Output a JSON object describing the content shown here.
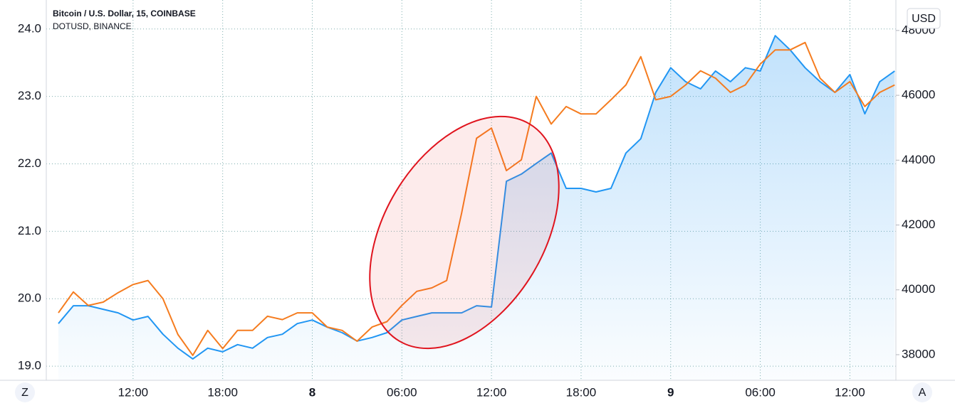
{
  "chart_data": {
    "type": "line",
    "title": "Bitcoin / U.S. Dollar, 15, COINBASE",
    "subtitle": "DOTUSD, BINANCE",
    "currency_label": "USD",
    "left_button": "Z",
    "right_button": "A",
    "categories": [
      null,
      null,
      null,
      null,
      null,
      "12:00",
      null,
      null,
      null,
      null,
      null,
      "18:00",
      null,
      null,
      null,
      null,
      null,
      "8",
      null,
      null,
      null,
      null,
      null,
      "06:00",
      null,
      null,
      null,
      null,
      null,
      "12:00",
      null,
      null,
      null,
      null,
      null,
      "18:00",
      null,
      null,
      null,
      null,
      null,
      "9",
      null,
      null,
      null,
      null,
      null,
      "06:00",
      null,
      null,
      null,
      null,
      null,
      "12:00",
      null,
      null,
      null
    ],
    "ylim": [
      18.79,
      24.43
    ],
    "yticks": [
      {
        "value": 19,
        "label": "19.0"
      },
      {
        "value": 20,
        "label": "20.0"
      },
      {
        "value": 21,
        "label": "21.0"
      },
      {
        "value": 22,
        "label": "22.0"
      },
      {
        "value": 23,
        "label": "23.0"
      },
      {
        "value": 24,
        "label": "24.0"
      }
    ],
    "y2lim": [
      37210,
      48940
    ],
    "y2ticks": [
      38000,
      40000,
      42000,
      44000,
      46000,
      48000
    ],
    "grid": true,
    "series": [
      {
        "name": "DOTUSD, BINANCE",
        "color": "#f57c1f",
        "axis": "y",
        "values": [
          19.79,
          20.1,
          19.9,
          19.95,
          20.09,
          20.21,
          20.27,
          20.0,
          19.47,
          19.16,
          19.53,
          19.26,
          19.53,
          19.53,
          19.74,
          19.69,
          19.79,
          19.79,
          19.58,
          19.53,
          19.37,
          19.58,
          19.66,
          19.9,
          20.11,
          20.16,
          20.27,
          21.27,
          22.38,
          22.53,
          21.9,
          22.06,
          23.0,
          22.59,
          22.85,
          22.74,
          22.74,
          22.95,
          23.17,
          23.59,
          22.95,
          23.0,
          23.17,
          23.38,
          23.27,
          23.06,
          23.17,
          23.48,
          23.69,
          23.69,
          23.8,
          23.27,
          23.06,
          23.22,
          22.85,
          23.06,
          23.17
        ]
      },
      {
        "name": "Bitcoin / U.S. Dollar, 15, COINBASE",
        "color": "#2196f3",
        "axis": "y2",
        "values": [
          38960,
          39510,
          39510,
          39400,
          39290,
          39070,
          39180,
          38630,
          38200,
          37870,
          38200,
          38090,
          38310,
          38200,
          38530,
          38630,
          38960,
          39070,
          38850,
          38680,
          38420,
          38530,
          38680,
          39070,
          39180,
          39290,
          39290,
          39290,
          39510,
          39470,
          43350,
          43570,
          43900,
          44220,
          43130,
          43130,
          43020,
          43130,
          44220,
          44660,
          46090,
          46850,
          46420,
          46200,
          46750,
          46420,
          46850,
          46750,
          47840,
          47400,
          46850,
          46420,
          46090,
          46640,
          45430,
          46420,
          46750
        ]
      }
    ]
  }
}
